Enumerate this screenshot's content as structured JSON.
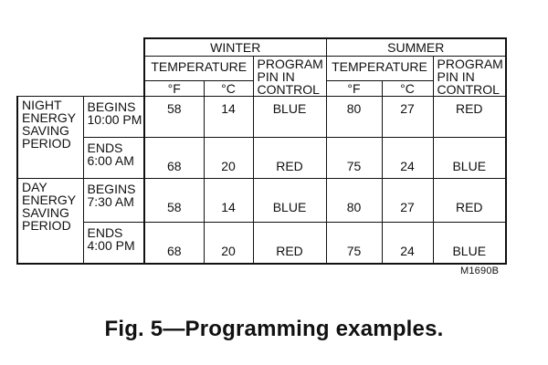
{
  "table": {
    "seasons": [
      "WINTER",
      "SUMMER"
    ],
    "temperature_label": "TEMPERATURE",
    "pin_label": [
      "PROGRAM",
      "PIN IN",
      "CONTROL"
    ],
    "units": [
      "°F",
      "°C"
    ],
    "periods": [
      {
        "label": [
          "NIGHT",
          "ENERGY",
          "SAVING",
          "PERIOD"
        ],
        "rows": [
          {
            "when": [
              "BEGINS",
              "10:00 PM"
            ],
            "winter_f": "58",
            "winter_c": "14",
            "winter_pin": "BLUE",
            "summer_f": "80",
            "summer_c": "27",
            "summer_pin": "RED"
          },
          {
            "when": [
              "ENDS",
              "6:00 AM"
            ],
            "winter_f": "68",
            "winter_c": "20",
            "winter_pin": "RED",
            "summer_f": "75",
            "summer_c": "24",
            "summer_pin": "BLUE"
          }
        ]
      },
      {
        "label": [
          "DAY",
          "ENERGY",
          "SAVING",
          "PERIOD"
        ],
        "rows": [
          {
            "when": [
              "BEGINS",
              "7:30 AM"
            ],
            "winter_f": "58",
            "winter_c": "14",
            "winter_pin": "BLUE",
            "summer_f": "80",
            "summer_c": "27",
            "summer_pin": "RED"
          },
          {
            "when": [
              "ENDS",
              "4:00 PM"
            ],
            "winter_f": "68",
            "winter_c": "20",
            "winter_pin": "RED",
            "summer_f": "75",
            "summer_c": "24",
            "summer_pin": "BLUE"
          }
        ]
      }
    ]
  },
  "figure_code": "M1690B",
  "caption": "Fig. 5—Programming examples."
}
